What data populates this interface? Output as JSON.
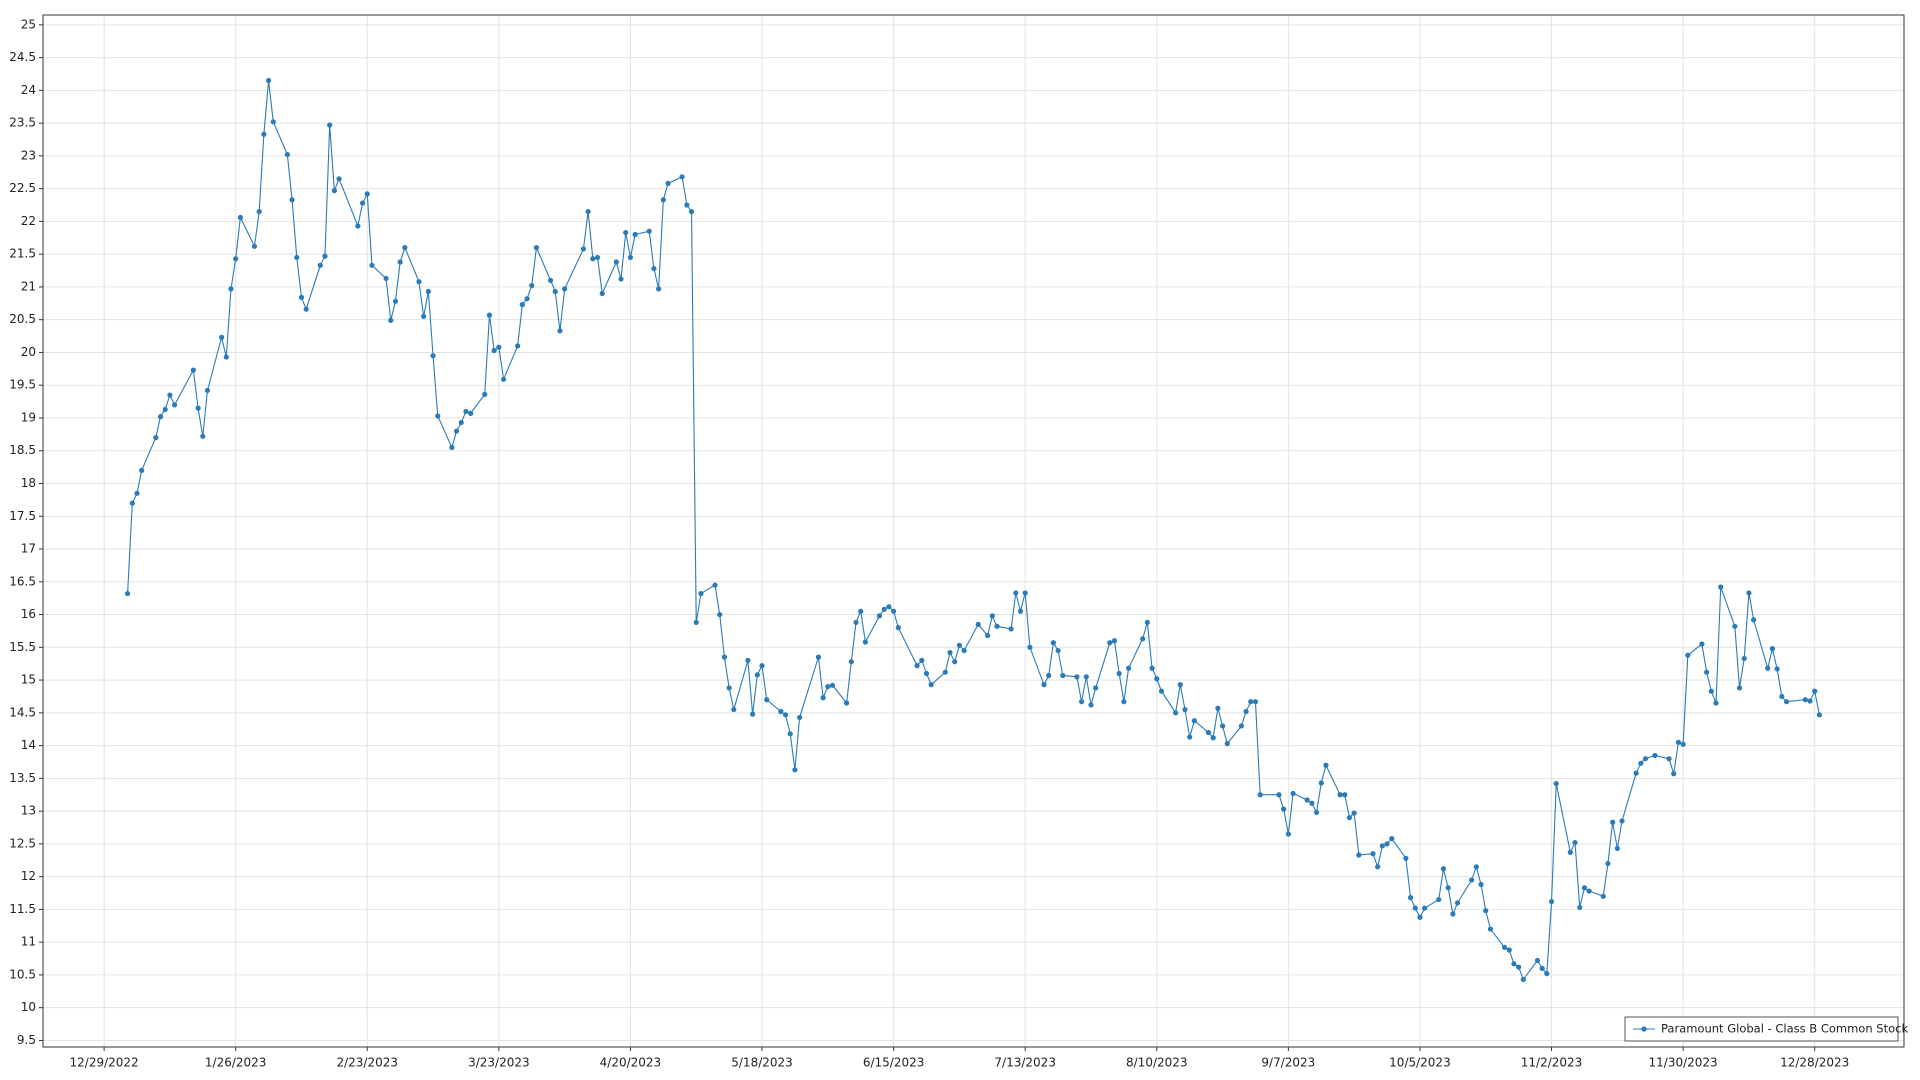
{
  "chart_data": {
    "type": "line",
    "legend": "lower right",
    "grid": true,
    "xlim": [
      "12/16/2022",
      "1/16/2024"
    ],
    "xticks": [
      "12/29/2022",
      "1/26/2023",
      "2/23/2023",
      "3/23/2023",
      "4/20/2023",
      "5/18/2023",
      "6/15/2023",
      "7/13/2023",
      "8/10/2023",
      "9/7/2023",
      "10/5/2023",
      "11/2/2023",
      "11/30/2023",
      "12/28/2023"
    ],
    "ylim": [
      9.4,
      25.15
    ],
    "yticks": [
      9.5,
      10,
      10.5,
      11,
      11.5,
      12,
      12.5,
      13,
      13.5,
      14,
      14.5,
      15,
      15.5,
      16,
      16.5,
      17,
      17.5,
      18,
      18.5,
      19,
      19.5,
      20,
      20.5,
      21,
      21.5,
      22,
      22.5,
      23,
      23.5,
      24,
      24.5,
      25
    ],
    "x": [
      "1/3/2023",
      "1/4/2023",
      "1/5/2023",
      "1/6/2023",
      "1/9/2023",
      "1/10/2023",
      "1/11/2023",
      "1/12/2023",
      "1/13/2023",
      "1/17/2023",
      "1/18/2023",
      "1/19/2023",
      "1/20/2023",
      "1/23/2023",
      "1/24/2023",
      "1/25/2023",
      "1/26/2023",
      "1/27/2023",
      "1/30/2023",
      "1/31/2023",
      "2/1/2023",
      "2/2/2023",
      "2/3/2023",
      "2/6/2023",
      "2/7/2023",
      "2/8/2023",
      "2/9/2023",
      "2/10/2023",
      "2/13/2023",
      "2/14/2023",
      "2/15/2023",
      "2/16/2023",
      "2/17/2023",
      "2/21/2023",
      "2/22/2023",
      "2/23/2023",
      "2/24/2023",
      "2/27/2023",
      "2/28/2023",
      "3/1/2023",
      "3/2/2023",
      "3/3/2023",
      "3/6/2023",
      "3/7/2023",
      "3/8/2023",
      "3/9/2023",
      "3/10/2023",
      "3/13/2023",
      "3/14/2023",
      "3/15/2023",
      "3/16/2023",
      "3/17/2023",
      "3/20/2023",
      "3/21/2023",
      "3/22/2023",
      "3/23/2023",
      "3/24/2023",
      "3/27/2023",
      "3/28/2023",
      "3/29/2023",
      "3/30/2023",
      "3/31/2023",
      "4/3/2023",
      "4/4/2023",
      "4/5/2023",
      "4/6/2023",
      "4/10/2023",
      "4/11/2023",
      "4/12/2023",
      "4/13/2023",
      "4/14/2023",
      "4/17/2023",
      "4/18/2023",
      "4/19/2023",
      "4/20/2023",
      "4/21/2023",
      "4/24/2023",
      "4/25/2023",
      "4/26/2023",
      "4/27/2023",
      "4/28/2023",
      "5/1/2023",
      "5/2/2023",
      "5/3/2023",
      "5/4/2023",
      "5/5/2023",
      "5/8/2023",
      "5/9/2023",
      "5/10/2023",
      "5/11/2023",
      "5/12/2023",
      "5/15/2023",
      "5/16/2023",
      "5/17/2023",
      "5/18/2023",
      "5/19/2023",
      "5/22/2023",
      "5/23/2023",
      "5/24/2023",
      "5/25/2023",
      "5/26/2023",
      "5/30/2023",
      "5/31/2023",
      "6/1/2023",
      "6/2/2023",
      "6/5/2023",
      "6/6/2023",
      "6/7/2023",
      "6/8/2023",
      "6/9/2023",
      "6/12/2023",
      "6/13/2023",
      "6/14/2023",
      "6/15/2023",
      "6/16/2023",
      "6/20/2023",
      "6/21/2023",
      "6/22/2023",
      "6/23/2023",
      "6/26/2023",
      "6/27/2023",
      "6/28/2023",
      "6/29/2023",
      "6/30/2023",
      "7/3/2023",
      "7/5/2023",
      "7/6/2023",
      "7/7/2023",
      "7/10/2023",
      "7/11/2023",
      "7/12/2023",
      "7/13/2023",
      "7/14/2023",
      "7/17/2023",
      "7/18/2023",
      "7/19/2023",
      "7/20/2023",
      "7/21/2023",
      "7/24/2023",
      "7/25/2023",
      "7/26/2023",
      "7/27/2023",
      "7/28/2023",
      "7/31/2023",
      "8/1/2023",
      "8/2/2023",
      "8/3/2023",
      "8/4/2023",
      "8/7/2023",
      "8/8/2023",
      "8/9/2023",
      "8/10/2023",
      "8/11/2023",
      "8/14/2023",
      "8/15/2023",
      "8/16/2023",
      "8/17/2023",
      "8/18/2023",
      "8/21/2023",
      "8/22/2023",
      "8/23/2023",
      "8/24/2023",
      "8/25/2023",
      "8/28/2023",
      "8/29/2023",
      "8/30/2023",
      "8/31/2023",
      "9/1/2023",
      "9/5/2023",
      "9/6/2023",
      "9/7/2023",
      "9/8/2023",
      "9/11/2023",
      "9/12/2023",
      "9/13/2023",
      "9/14/2023",
      "9/15/2023",
      "9/18/2023",
      "9/19/2023",
      "9/20/2023",
      "9/21/2023",
      "9/22/2023",
      "9/25/2023",
      "9/26/2023",
      "9/27/2023",
      "9/28/2023",
      "9/29/2023",
      "10/2/2023",
      "10/3/2023",
      "10/4/2023",
      "10/5/2023",
      "10/6/2023",
      "10/9/2023",
      "10/10/2023",
      "10/11/2023",
      "10/12/2023",
      "10/13/2023",
      "10/16/2023",
      "10/17/2023",
      "10/18/2023",
      "10/19/2023",
      "10/20/2023",
      "10/23/2023",
      "10/24/2023",
      "10/25/2023",
      "10/26/2023",
      "10/27/2023",
      "10/30/2023",
      "10/31/2023",
      "11/1/2023",
      "11/2/2023",
      "11/3/2023",
      "11/6/2023",
      "11/7/2023",
      "11/8/2023",
      "11/9/2023",
      "11/10/2023",
      "11/13/2023",
      "11/14/2023",
      "11/15/2023",
      "11/16/2023",
      "11/17/2023",
      "11/20/2023",
      "11/21/2023",
      "11/22/2023",
      "11/24/2023",
      "11/27/2023",
      "11/28/2023",
      "11/29/2023",
      "11/30/2023",
      "12/1/2023",
      "12/4/2023",
      "12/5/2023",
      "12/6/2023",
      "12/7/2023",
      "12/8/2023",
      "12/11/2023",
      "12/12/2023",
      "12/13/2023",
      "12/14/2023",
      "12/15/2023",
      "12/18/2023",
      "12/19/2023",
      "12/20/2023",
      "12/21/2023",
      "12/22/2023",
      "12/26/2023",
      "12/27/2023",
      "12/28/2023",
      "12/29/2023"
    ],
    "series": [
      {
        "name": "Paramount Global - Class B Common Stock",
        "color": "#2b7bb9",
        "values": [
          16.32,
          17.7,
          17.85,
          18.2,
          18.7,
          19.02,
          19.13,
          19.35,
          19.2,
          19.73,
          19.15,
          18.72,
          19.42,
          20.23,
          19.93,
          20.97,
          21.43,
          22.06,
          21.62,
          22.15,
          23.33,
          24.15,
          23.52,
          23.02,
          22.33,
          21.45,
          20.84,
          20.66,
          21.33,
          21.47,
          23.47,
          22.47,
          22.65,
          21.93,
          22.28,
          22.42,
          21.33,
          21.13,
          20.49,
          20.78,
          21.38,
          21.6,
          21.08,
          20.55,
          20.93,
          19.95,
          19.03,
          18.55,
          18.8,
          18.93,
          19.1,
          19.07,
          19.36,
          20.57,
          20.03,
          20.08,
          19.59,
          20.1,
          20.73,
          20.82,
          21.02,
          21.6,
          21.1,
          20.93,
          20.33,
          20.97,
          21.58,
          22.15,
          21.43,
          21.45,
          20.9,
          21.38,
          21.12,
          21.83,
          21.45,
          21.8,
          21.85,
          21.28,
          20.97,
          22.33,
          22.58,
          22.68,
          22.25,
          22.15,
          15.88,
          16.32,
          16.45,
          16.0,
          15.35,
          14.88,
          14.55,
          15.3,
          14.48,
          15.08,
          15.22,
          14.7,
          14.52,
          14.47,
          14.18,
          13.63,
          14.43,
          15.35,
          14.73,
          14.9,
          14.92,
          14.65,
          15.28,
          15.88,
          16.05,
          15.58,
          15.98,
          16.08,
          16.12,
          16.05,
          15.8,
          15.22,
          15.3,
          15.1,
          14.93,
          15.12,
          15.42,
          15.28,
          15.53,
          15.45,
          15.85,
          15.68,
          15.98,
          15.82,
          15.78,
          16.33,
          16.05,
          16.33,
          15.5,
          14.93,
          15.07,
          15.57,
          15.45,
          15.07,
          15.05,
          14.67,
          15.05,
          14.62,
          14.88,
          15.57,
          15.6,
          15.1,
          14.67,
          15.18,
          15.63,
          15.88,
          15.18,
          15.02,
          14.83,
          14.5,
          14.93,
          14.55,
          14.13,
          14.38,
          14.2,
          14.12,
          14.57,
          14.3,
          14.03,
          14.3,
          14.52,
          14.67,
          14.67,
          13.25,
          13.25,
          13.03,
          12.65,
          13.27,
          13.17,
          13.12,
          12.98,
          13.43,
          13.7,
          13.25,
          13.25,
          12.9,
          12.97,
          12.33,
          12.35,
          12.15,
          12.47,
          12.5,
          12.58,
          12.28,
          11.68,
          11.52,
          11.38,
          11.52,
          11.65,
          12.12,
          11.83,
          11.43,
          11.6,
          11.95,
          12.15,
          11.88,
          11.48,
          11.2,
          10.92,
          10.88,
          10.67,
          10.62,
          10.43,
          10.72,
          10.6,
          10.52,
          11.62,
          13.42,
          12.37,
          12.52,
          11.53,
          11.83,
          11.78,
          11.7,
          12.2,
          12.83,
          12.43,
          12.85,
          13.58,
          13.73,
          13.8,
          13.85,
          13.8,
          13.57,
          14.05,
          14.02,
          15.38,
          15.55,
          15.12,
          14.83,
          14.65,
          16.42,
          15.82,
          14.88,
          15.33,
          16.33,
          15.92,
          15.18,
          15.48,
          15.17,
          14.75,
          14.67,
          14.7,
          14.68,
          14.83,
          14.47
        ]
      }
    ]
  }
}
